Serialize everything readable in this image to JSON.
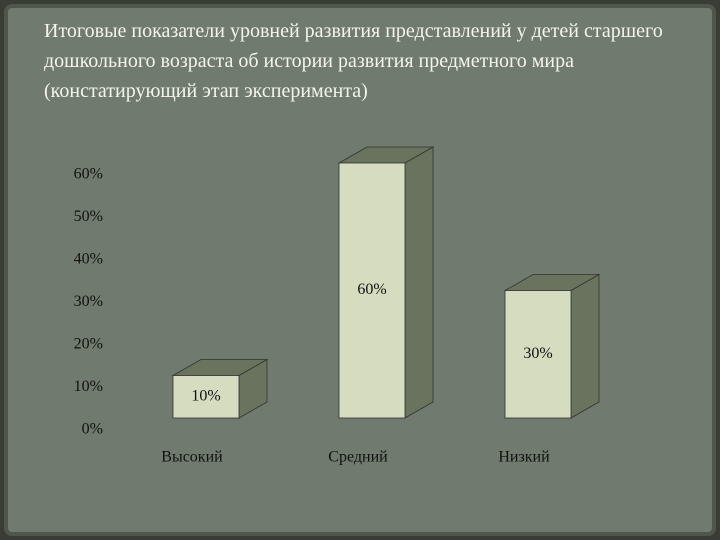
{
  "chart_data": {
    "type": "bar3d",
    "title": "Итоговые показатели уровней развития представлений у детей старшего дошкольного возраста об истории развития предметного мира (констатирующий этап эксперимента)",
    "categories": [
      "Высокий",
      "Средний",
      "Низкий"
    ],
    "values": [
      10,
      60,
      30
    ],
    "value_labels": [
      "10%",
      "60%",
      "30%"
    ],
    "color": "#d6dcc0",
    "ylim": [
      0,
      60
    ],
    "yticks": [
      {
        "value": 0,
        "label": "0%"
      },
      {
        "value": 10,
        "label": "10%"
      },
      {
        "value": 20,
        "label": "20%"
      },
      {
        "value": 30,
        "label": "30%"
      },
      {
        "value": 40,
        "label": "40%"
      },
      {
        "value": 50,
        "label": "50%"
      },
      {
        "value": 60,
        "label": "60%"
      }
    ],
    "grid": false
  }
}
